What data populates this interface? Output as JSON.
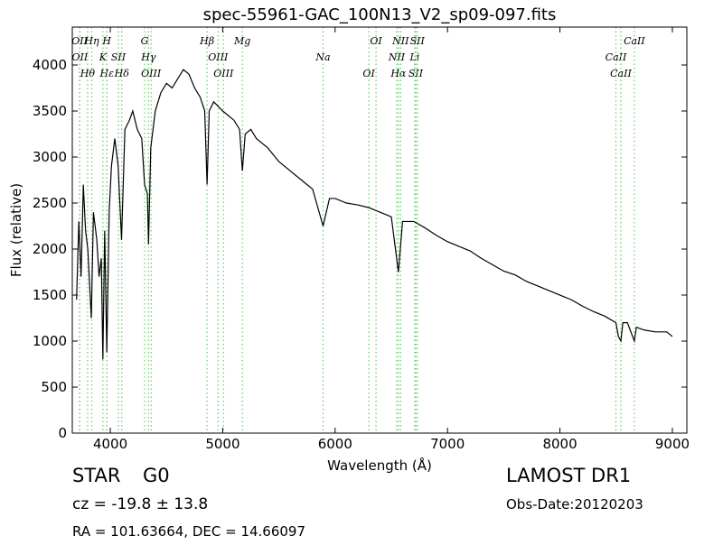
{
  "chart_data": {
    "type": "line",
    "title": "spec-55961-GAC_100N13_V2_sp09-097.fits",
    "xlabel": "Wavelength (Å)",
    "ylabel": "Flux (relative)",
    "xlim": [
      3662,
      9129
    ],
    "ylim": [
      0,
      4412
    ],
    "xticks": [
      4000,
      5000,
      6000,
      7000,
      8000,
      9000
    ],
    "yticks": [
      0,
      500,
      1000,
      1500,
      2000,
      2500,
      3000,
      3500,
      4000
    ],
    "x": [
      3700,
      3720,
      3740,
      3760,
      3780,
      3800,
      3831,
      3850,
      3880,
      3900,
      3920,
      3934,
      3950,
      3969,
      3990,
      4010,
      4040,
      4070,
      4100,
      4130,
      4170,
      4200,
      4240,
      4280,
      4305,
      4330,
      4340,
      4360,
      4400,
      4450,
      4500,
      4550,
      4600,
      4650,
      4700,
      4750,
      4800,
      4840,
      4861,
      4880,
      4920,
      4960,
      5000,
      5050,
      5100,
      5150,
      5175,
      5200,
      5250,
      5300,
      5400,
      5500,
      5600,
      5700,
      5800,
      5893,
      5950,
      6000,
      6100,
      6200,
      6300,
      6400,
      6500,
      6563,
      6600,
      6700,
      6800,
      6900,
      7000,
      7100,
      7200,
      7300,
      7400,
      7500,
      7600,
      7700,
      7800,
      7900,
      8000,
      8100,
      8200,
      8300,
      8400,
      8498,
      8520,
      8542,
      8560,
      8600,
      8662,
      8680,
      8750,
      8850,
      8950,
      9000
    ],
    "series": [
      {
        "name": "flux",
        "color": "#000000",
        "values": [
          1450,
          2300,
          1700,
          2700,
          2200,
          2000,
          1250,
          2400,
          2100,
          1700,
          1900,
          800,
          2200,
          880,
          2400,
          2900,
          3200,
          2900,
          2100,
          3300,
          3400,
          3500,
          3300,
          3200,
          2700,
          2600,
          2050,
          3100,
          3500,
          3700,
          3800,
          3750,
          3850,
          3950,
          3900,
          3750,
          3650,
          3500,
          2700,
          3500,
          3600,
          3550,
          3500,
          3450,
          3400,
          3300,
          2850,
          3250,
          3300,
          3200,
          3100,
          2950,
          2850,
          2750,
          2650,
          2250,
          2550,
          2550,
          2500,
          2480,
          2450,
          2400,
          2350,
          1750,
          2300,
          2300,
          2230,
          2150,
          2080,
          2030,
          1980,
          1900,
          1830,
          1760,
          1720,
          1650,
          1600,
          1550,
          1500,
          1450,
          1380,
          1320,
          1270,
          1200,
          1050,
          1000,
          1200,
          1200,
          1000,
          1150,
          1120,
          1100,
          1100,
          1050
        ]
      }
    ],
    "line_color": "#66cc66",
    "lines": [
      {
        "label": "OII",
        "wavelength": 3727
      },
      {
        "label": "OII",
        "wavelength": 3729
      },
      {
        "label": "Hθ",
        "wavelength": 3798
      },
      {
        "label": "Hη",
        "wavelength": 3835
      },
      {
        "label": "K",
        "wavelength": 3934
      },
      {
        "label": "Hε",
        "wavelength": 3970
      },
      {
        "label": "H",
        "wavelength": 3969
      },
      {
        "label": "SII",
        "wavelength": 4072
      },
      {
        "label": "Hδ",
        "wavelength": 4102
      },
      {
        "label": "G",
        "wavelength": 4305
      },
      {
        "label": "Hγ",
        "wavelength": 4340
      },
      {
        "label": "OIII",
        "wavelength": 4363
      },
      {
        "label": "Hβ",
        "wavelength": 4861
      },
      {
        "label": "OIII",
        "wavelength": 4959
      },
      {
        "label": "OIII",
        "wavelength": 5007
      },
      {
        "label": "Mg",
        "wavelength": 5175
      },
      {
        "label": "Na",
        "wavelength": 5893
      },
      {
        "label": "OI",
        "wavelength": 6300
      },
      {
        "label": "OI",
        "wavelength": 6364
      },
      {
        "label": "NII",
        "wavelength": 6548
      },
      {
        "label": "Hα",
        "wavelength": 6563
      },
      {
        "label": "NII",
        "wavelength": 6583
      },
      {
        "label": "Li",
        "wavelength": 6708
      },
      {
        "label": "SII",
        "wavelength": 6717
      },
      {
        "label": "SII",
        "wavelength": 6731
      },
      {
        "label": "CaII",
        "wavelength": 8498
      },
      {
        "label": "CaII",
        "wavelength": 8542
      },
      {
        "label": "CaII",
        "wavelength": 8662
      }
    ]
  },
  "info": {
    "class": "STAR",
    "subclass": "G0",
    "survey": "LAMOST DR1",
    "cz": "cz = -19.8 ± 13.8",
    "obs_date": "Obs-Date:20120203",
    "coords": "RA = 101.63664, DEC = 14.66097"
  }
}
